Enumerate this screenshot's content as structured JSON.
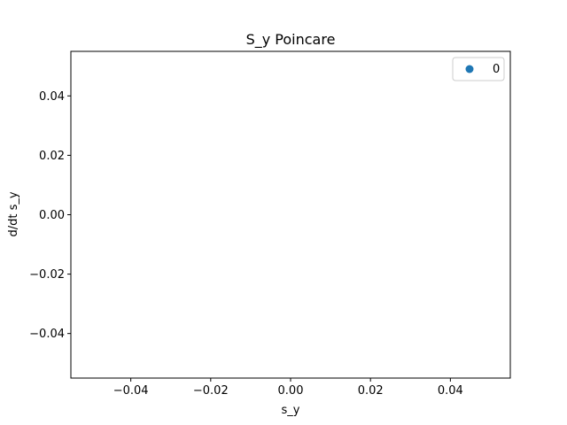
{
  "chart_data": {
    "type": "scatter",
    "title": "S_y Poincare",
    "xlabel": "s_y",
    "ylabel": "d/dt s_y",
    "xlim": [
      -0.055,
      0.055
    ],
    "ylim": [
      -0.055,
      0.055
    ],
    "xticks": [
      -0.04,
      -0.02,
      0.0,
      0.02,
      0.04
    ],
    "yticks": [
      -0.04,
      -0.02,
      0.0,
      0.02,
      0.04
    ],
    "xtick_labels": [
      "−0.04",
      "−0.02",
      "0.00",
      "0.02",
      "0.04"
    ],
    "ytick_labels": [
      "−0.04",
      "−0.02",
      "0.00",
      "0.02",
      "0.04"
    ],
    "grid": false,
    "legend": {
      "placement": "top-right",
      "entries": [
        "0"
      ]
    },
    "series": [
      {
        "name": "0",
        "color": "#1f77b4",
        "x": [],
        "y": []
      }
    ]
  }
}
